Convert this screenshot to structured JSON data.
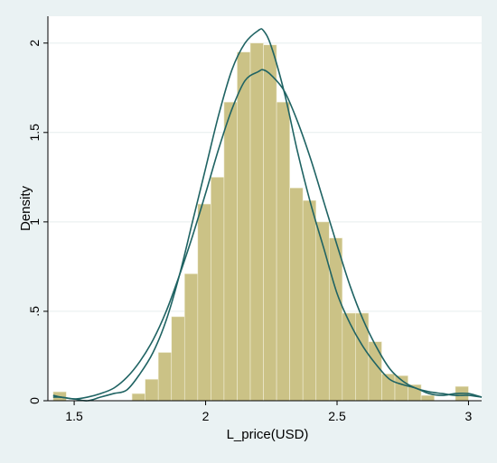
{
  "chart_data": {
    "type": "bar",
    "title": "",
    "xlabel": "L_price(USD)",
    "ylabel": "Density",
    "xlim": [
      1.4,
      3.05
    ],
    "ylim": [
      0,
      2.15
    ],
    "x_ticks": [
      {
        "value": 1.5,
        "label": "1.5"
      },
      {
        "value": 2,
        "label": "2"
      },
      {
        "value": 2.5,
        "label": "2.5"
      },
      {
        "value": 3,
        "label": "3"
      }
    ],
    "y_ticks": [
      {
        "value": 0,
        "label": "0"
      },
      {
        "value": 0.5,
        "label": ".5"
      },
      {
        "value": 1,
        "label": "1"
      },
      {
        "value": 1.5,
        "label": "1.5"
      },
      {
        "value": 2,
        "label": "2"
      }
    ],
    "grid": "horizontal",
    "histogram": {
      "bin_width": 0.05,
      "bins": [
        {
          "x0": 1.42,
          "density": 0.05
        },
        {
          "x0": 1.72,
          "density": 0.04
        },
        {
          "x0": 1.77,
          "density": 0.12
        },
        {
          "x0": 1.82,
          "density": 0.27
        },
        {
          "x0": 1.87,
          "density": 0.47
        },
        {
          "x0": 1.92,
          "density": 0.71
        },
        {
          "x0": 1.97,
          "density": 1.1
        },
        {
          "x0": 2.02,
          "density": 1.25
        },
        {
          "x0": 2.07,
          "density": 1.67
        },
        {
          "x0": 2.12,
          "density": 1.95
        },
        {
          "x0": 2.17,
          "density": 2.0
        },
        {
          "x0": 2.22,
          "density": 1.99
        },
        {
          "x0": 2.27,
          "density": 1.67
        },
        {
          "x0": 2.32,
          "density": 1.19
        },
        {
          "x0": 2.37,
          "density": 1.12
        },
        {
          "x0": 2.42,
          "density": 1.0
        },
        {
          "x0": 2.47,
          "density": 0.91
        },
        {
          "x0": 2.52,
          "density": 0.49
        },
        {
          "x0": 2.57,
          "density": 0.49
        },
        {
          "x0": 2.62,
          "density": 0.33
        },
        {
          "x0": 2.67,
          "density": 0.15
        },
        {
          "x0": 2.72,
          "density": 0.14
        },
        {
          "x0": 2.77,
          "density": 0.09
        },
        {
          "x0": 2.82,
          "density": 0.03
        },
        {
          "x0": 2.95,
          "density": 0.08
        }
      ]
    },
    "series": [
      {
        "type": "line",
        "x": [
          1.42,
          1.45,
          1.5,
          1.55,
          1.6,
          1.65,
          1.7,
          1.75,
          1.8,
          1.85,
          1.9,
          1.95,
          2.0,
          2.05,
          2.1,
          2.15,
          2.2,
          2.22,
          2.25,
          2.3,
          2.35,
          2.4,
          2.45,
          2.5,
          2.55,
          2.6,
          2.65,
          2.7,
          2.75,
          2.8,
          2.85,
          2.9,
          2.95,
          3.0,
          3.05
        ],
        "values": [
          0.02,
          0.02,
          0.01,
          0.02,
          0.04,
          0.07,
          0.13,
          0.22,
          0.34,
          0.5,
          0.7,
          0.92,
          1.16,
          1.41,
          1.63,
          1.79,
          1.84,
          1.85,
          1.82,
          1.73,
          1.56,
          1.35,
          1.11,
          0.87,
          0.64,
          0.45,
          0.3,
          0.18,
          0.11,
          0.07,
          0.05,
          0.04,
          0.03,
          0.03,
          0.02
        ]
      },
      {
        "type": "line",
        "x": [
          1.42,
          1.45,
          1.5,
          1.55,
          1.6,
          1.65,
          1.7,
          1.75,
          1.8,
          1.85,
          1.9,
          1.95,
          2.0,
          2.05,
          2.1,
          2.15,
          2.2,
          2.22,
          2.25,
          2.3,
          2.35,
          2.4,
          2.45,
          2.5,
          2.55,
          2.6,
          2.65,
          2.7,
          2.75,
          2.8,
          2.85,
          2.9,
          2.95,
          3.0,
          3.05
        ],
        "values": [
          0.03,
          0.02,
          0.01,
          0.0,
          0.02,
          0.04,
          0.06,
          0.15,
          0.27,
          0.45,
          0.7,
          1.0,
          1.3,
          1.6,
          1.85,
          2.0,
          2.07,
          2.07,
          1.98,
          1.72,
          1.39,
          1.1,
          0.85,
          0.6,
          0.43,
          0.3,
          0.2,
          0.12,
          0.09,
          0.07,
          0.04,
          0.03,
          0.04,
          0.04,
          0.02
        ]
      }
    ]
  },
  "style": {
    "bar_fill": "#cbc286",
    "bar_stroke": "#f2efd9",
    "line_color": "#1f6363",
    "plot_background": "#ffffff",
    "outer_background": "#eaf2f3",
    "grid_color": "#e6edee"
  }
}
